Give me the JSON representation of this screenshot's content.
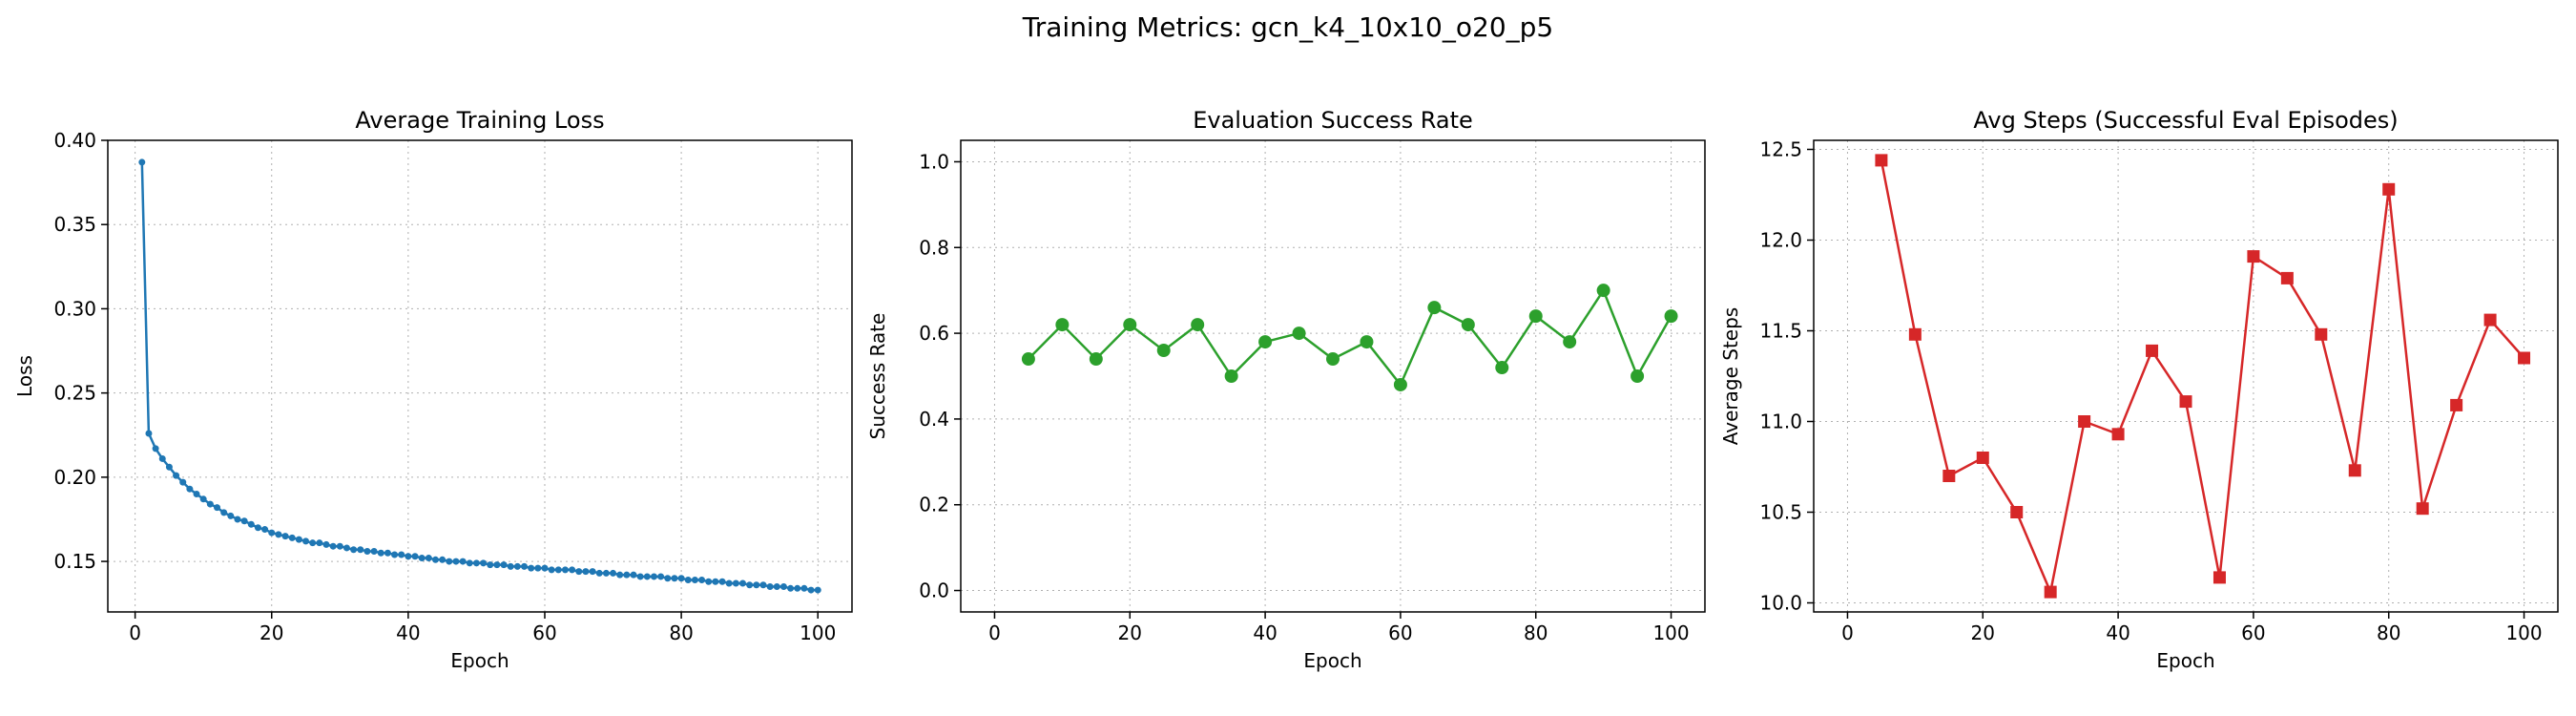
{
  "suptitle": "Training Metrics: gcn_k4_10x10_o20_p5",
  "chart_data": [
    {
      "type": "line",
      "title": "Average Training Loss",
      "xlabel": "Epoch",
      "ylabel": "Loss",
      "xlim": [
        -4,
        105
      ],
      "ylim": [
        0.12,
        0.4
      ],
      "xticks": [
        0,
        20,
        40,
        60,
        80,
        100
      ],
      "yticks": [
        0.15,
        0.2,
        0.25,
        0.3,
        0.35,
        0.4
      ],
      "ytick_decimals": 2,
      "grid": true,
      "color": "#1f77b4",
      "marker": "circle-small",
      "series": [
        {
          "x": [
            1,
            2,
            3,
            4,
            5,
            6,
            7,
            8,
            9,
            10,
            11,
            12,
            13,
            14,
            15,
            16,
            17,
            18,
            19,
            20,
            21,
            22,
            23,
            24,
            25,
            26,
            27,
            28,
            29,
            30,
            31,
            32,
            33,
            34,
            35,
            36,
            37,
            38,
            39,
            40,
            41,
            42,
            43,
            44,
            45,
            46,
            47,
            48,
            49,
            50,
            51,
            52,
            53,
            54,
            55,
            56,
            57,
            58,
            59,
            60,
            61,
            62,
            63,
            64,
            65,
            66,
            67,
            68,
            69,
            70,
            71,
            72,
            73,
            74,
            75,
            76,
            77,
            78,
            79,
            80,
            81,
            82,
            83,
            84,
            85,
            86,
            87,
            88,
            89,
            90,
            91,
            92,
            93,
            94,
            95,
            96,
            97,
            98,
            99,
            100
          ],
          "values": [
            0.387,
            0.226,
            0.217,
            0.211,
            0.206,
            0.201,
            0.197,
            0.193,
            0.19,
            0.187,
            0.184,
            0.182,
            0.179,
            0.177,
            0.175,
            0.174,
            0.172,
            0.17,
            0.169,
            0.167,
            0.166,
            0.165,
            0.164,
            0.163,
            0.162,
            0.161,
            0.161,
            0.16,
            0.159,
            0.159,
            0.158,
            0.157,
            0.157,
            0.156,
            0.156,
            0.155,
            0.155,
            0.154,
            0.154,
            0.153,
            0.153,
            0.152,
            0.152,
            0.151,
            0.151,
            0.15,
            0.15,
            0.15,
            0.149,
            0.149,
            0.149,
            0.148,
            0.148,
            0.148,
            0.147,
            0.147,
            0.147,
            0.146,
            0.146,
            0.146,
            0.145,
            0.145,
            0.145,
            0.145,
            0.144,
            0.144,
            0.144,
            0.143,
            0.143,
            0.143,
            0.142,
            0.142,
            0.142,
            0.141,
            0.141,
            0.141,
            0.141,
            0.14,
            0.14,
            0.14,
            0.139,
            0.139,
            0.139,
            0.138,
            0.138,
            0.138,
            0.137,
            0.137,
            0.137,
            0.136,
            0.136,
            0.136,
            0.135,
            0.135,
            0.135,
            0.134,
            0.134,
            0.134,
            0.133,
            0.133
          ]
        }
      ]
    },
    {
      "type": "line",
      "title": "Evaluation Success Rate",
      "xlabel": "Epoch",
      "ylabel": "Success Rate",
      "xlim": [
        -5,
        105
      ],
      "ylim": [
        -0.05,
        1.05
      ],
      "xticks": [
        0,
        20,
        40,
        60,
        80,
        100
      ],
      "yticks": [
        0.0,
        0.2,
        0.4,
        0.6,
        0.8,
        1.0
      ],
      "ytick_decimals": 1,
      "grid": true,
      "color": "#2ca02c",
      "marker": "circle",
      "series": [
        {
          "x": [
            5,
            10,
            15,
            20,
            25,
            30,
            35,
            40,
            45,
            50,
            55,
            60,
            65,
            70,
            75,
            80,
            85,
            90,
            95,
            100
          ],
          "values": [
            0.54,
            0.62,
            0.54,
            0.62,
            0.56,
            0.62,
            0.5,
            0.58,
            0.6,
            0.54,
            0.58,
            0.48,
            0.66,
            0.62,
            0.52,
            0.64,
            0.58,
            0.7,
            0.5,
            0.64
          ]
        }
      ]
    },
    {
      "type": "line",
      "title": "Avg Steps (Successful Eval Episodes)",
      "xlabel": "Epoch",
      "ylabel": "Average Steps",
      "xlim": [
        -5,
        105
      ],
      "ylim": [
        9.95,
        12.55
      ],
      "xticks": [
        0,
        20,
        40,
        60,
        80,
        100
      ],
      "yticks": [
        10.0,
        10.5,
        11.0,
        11.5,
        12.0,
        12.5
      ],
      "ytick_decimals": 1,
      "grid": true,
      "color": "#d62728",
      "marker": "square",
      "series": [
        {
          "x": [
            5,
            10,
            15,
            20,
            25,
            30,
            35,
            40,
            45,
            50,
            55,
            60,
            65,
            70,
            75,
            80,
            85,
            90,
            95,
            100
          ],
          "values": [
            12.44,
            11.48,
            10.7,
            10.8,
            10.5,
            10.06,
            11.0,
            10.93,
            11.39,
            11.11,
            10.14,
            11.91,
            11.79,
            11.48,
            10.73,
            12.28,
            10.52,
            11.09,
            11.56,
            11.35
          ]
        }
      ]
    }
  ]
}
